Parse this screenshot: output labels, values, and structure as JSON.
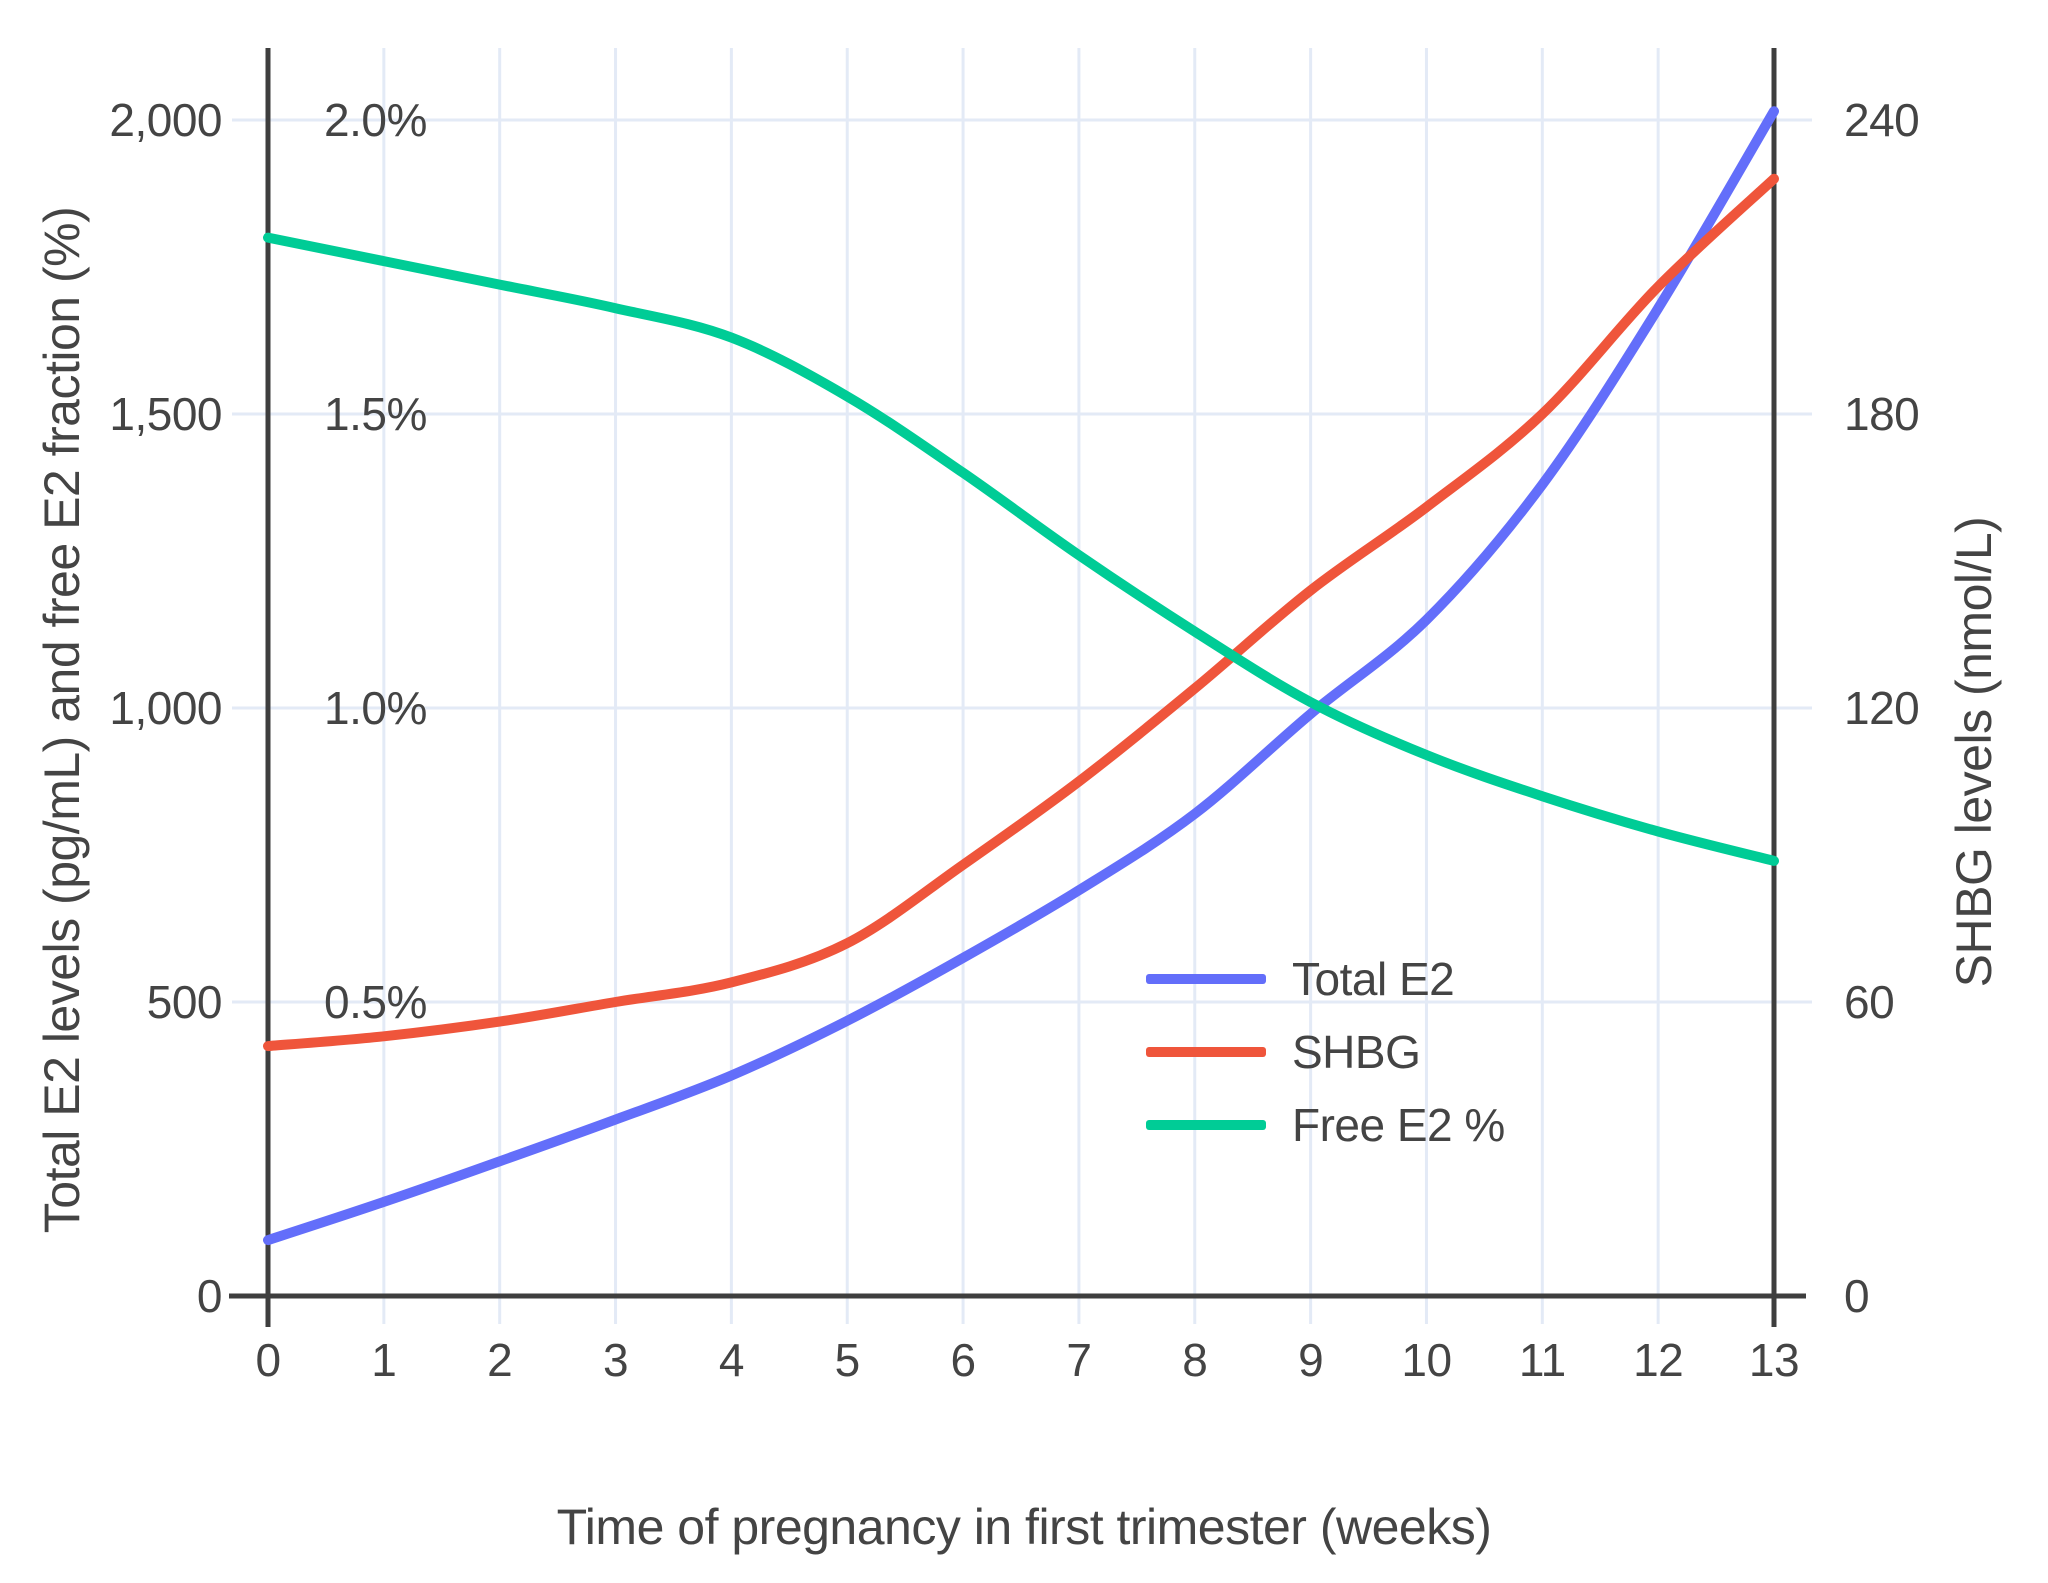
{
  "style": {
    "background_color": "#ffffff",
    "gridline_color": "#e3eaf6",
    "axis_line_color": "#3e3e3e",
    "text_color": "#444444",
    "series_colors": {
      "total_e2": "#636efa",
      "shbg": "#ef553b",
      "free_e2_pct": "#00cc96"
    }
  },
  "chart_data": {
    "type": "line",
    "title": "",
    "xlabel": "Time of pregnancy in first trimester (weeks)",
    "ylabel_left": "Total E2 levels (pg/mL) and free E2 fraction (%)",
    "ylabel_right": "SHBG levels (nmol/L)",
    "x": [
      0,
      1,
      2,
      3,
      4,
      5,
      6,
      7,
      8,
      9,
      10,
      11,
      12,
      13
    ],
    "x_tick_labels": [
      "0",
      "1",
      "2",
      "3",
      "4",
      "5",
      "6",
      "7",
      "8",
      "9",
      "10",
      "11",
      "12",
      "13"
    ],
    "x_range": [
      0,
      13
    ],
    "y_left_range": [
      0,
      2000
    ],
    "y_left_ticks": [
      {
        "value": 0,
        "label": "0"
      },
      {
        "value": 500,
        "label": "500"
      },
      {
        "value": 1000,
        "label": "1,000"
      },
      {
        "value": 1500,
        "label": "1,500"
      },
      {
        "value": 2000,
        "label": "2,000"
      }
    ],
    "y_left_percent_ticks": [
      {
        "value": 500,
        "label": "0.5%"
      },
      {
        "value": 1000,
        "label": "1.0%"
      },
      {
        "value": 1500,
        "label": "1.5%"
      },
      {
        "value": 2000,
        "label": "2.0%"
      }
    ],
    "y_right_range": [
      0,
      240
    ],
    "y_right_ticks": [
      {
        "value": 0,
        "label": "0"
      },
      {
        "value": 60,
        "label": "60"
      },
      {
        "value": 120,
        "label": "120"
      },
      {
        "value": 180,
        "label": "180"
      },
      {
        "value": 240,
        "label": "240"
      }
    ],
    "grid": true,
    "legend_position": "inside-lower-right",
    "series": [
      {
        "name": "Total E2",
        "axis": "left",
        "units": "pg/mL",
        "color": "#636efa",
        "values": [
          95,
          160,
          229,
          300,
          375,
          468,
          575,
          690,
          820,
          990,
          1150,
          1380,
          1680,
          2015
        ]
      },
      {
        "name": "SHBG",
        "axis": "right",
        "units": "nmol/L",
        "color": "#ef553b",
        "values": [
          51,
          53,
          56,
          60,
          64,
          72,
          88,
          105,
          124,
          144,
          161,
          180,
          206,
          228
        ]
      },
      {
        "name": "Free E2 %",
        "axis": "left-percent",
        "units": "%",
        "color": "#00cc96",
        "values": [
          1.8,
          1.76,
          1.72,
          1.68,
          1.63,
          1.53,
          1.4,
          1.26,
          1.13,
          1.01,
          0.92,
          0.85,
          0.79,
          0.74
        ]
      }
    ]
  }
}
